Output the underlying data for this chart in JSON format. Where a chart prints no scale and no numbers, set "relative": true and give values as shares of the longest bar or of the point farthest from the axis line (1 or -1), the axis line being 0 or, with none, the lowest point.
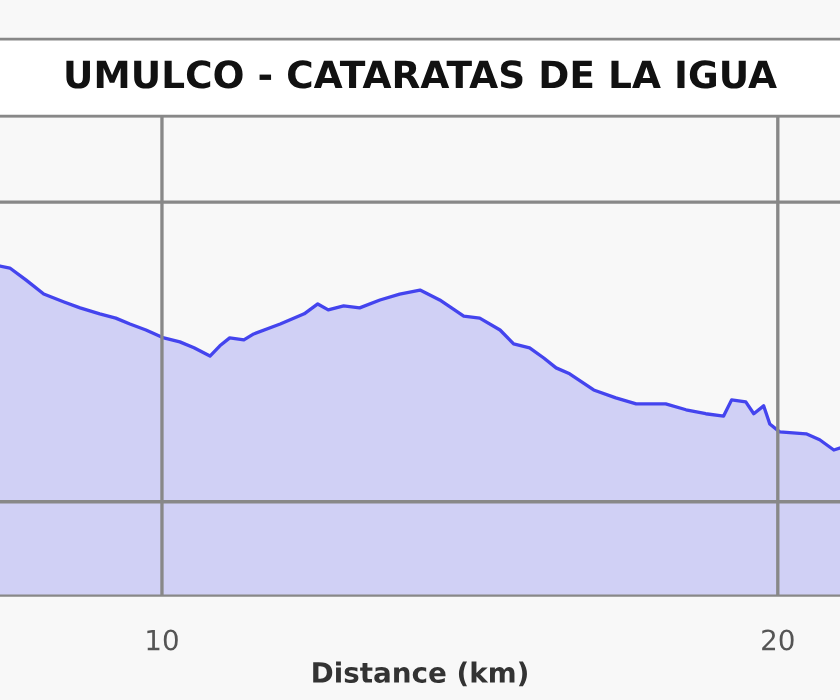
{
  "chart_data": {
    "type": "area",
    "title": "UMULCO - CATARATAS DE LA IGUA",
    "xlabel": "Distance (km)",
    "relative": true,
    "xlim": [
      7.37,
      21.01
    ],
    "xticks": [
      10,
      20
    ],
    "grid": true,
    "tick_labels": "x",
    "series": [
      {
        "color": "#4444ee",
        "x": [
          7.37,
          7.53,
          7.79,
          8.08,
          8.41,
          8.67,
          8.99,
          9.25,
          9.48,
          9.74,
          10.03,
          10.29,
          10.52,
          10.78,
          10.94,
          11.1,
          11.33,
          11.49,
          11.92,
          12.31,
          12.53,
          12.7,
          12.95,
          13.21,
          13.54,
          13.86,
          14.19,
          14.51,
          14.9,
          15.16,
          15.49,
          15.71,
          15.97,
          16.2,
          16.4,
          16.62,
          17.01,
          17.37,
          17.7,
          18.18,
          18.51,
          18.83,
          19.12,
          19.25,
          19.48,
          19.61,
          19.77,
          19.87,
          20.03,
          20.46,
          20.68,
          20.91,
          21.01
        ],
        "values": [
          1.0,
          0.994,
          0.958,
          0.915,
          0.891,
          0.873,
          0.855,
          0.842,
          0.824,
          0.806,
          0.782,
          0.77,
          0.752,
          0.727,
          0.758,
          0.782,
          0.776,
          0.794,
          0.824,
          0.855,
          0.885,
          0.867,
          0.879,
          0.873,
          0.897,
          0.915,
          0.927,
          0.897,
          0.848,
          0.842,
          0.806,
          0.764,
          0.752,
          0.721,
          0.691,
          0.673,
          0.624,
          0.6,
          0.582,
          0.582,
          0.564,
          0.552,
          0.545,
          0.594,
          0.588,
          0.552,
          0.576,
          0.521,
          0.497,
          0.491,
          0.473,
          0.442,
          0.448
        ]
      }
    ]
  }
}
